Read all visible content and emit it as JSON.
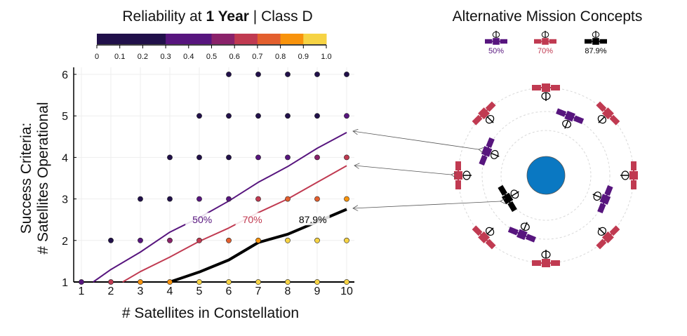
{
  "chart_data": {
    "type": "scatter",
    "title_prefix": "Reliability at ",
    "title_bold": "1 Year",
    "title_suffix": " | Class D",
    "xlabel": "# Satellites in Constellation",
    "ylabel_line1": "Success Criteria:",
    "ylabel_line2": "# Satellites Operational",
    "xlim": [
      1,
      10
    ],
    "ylim": [
      1,
      6
    ],
    "xticks": [
      "1",
      "2",
      "3",
      "4",
      "5",
      "6",
      "7",
      "8",
      "9",
      "10"
    ],
    "yticks": [
      "1",
      "2",
      "3",
      "4",
      "5",
      "6"
    ],
    "grid": true,
    "colorbar": {
      "bands": [
        {
          "from": 0,
          "to": 0.3,
          "color": "#21104a"
        },
        {
          "from": 0.3,
          "to": 0.5,
          "color": "#57157e"
        },
        {
          "from": 0.5,
          "to": 0.6,
          "color": "#8a226a"
        },
        {
          "from": 0.6,
          "to": 0.7,
          "color": "#c03a51"
        },
        {
          "from": 0.7,
          "to": 0.8,
          "color": "#e35f2e"
        },
        {
          "from": 0.8,
          "to": 0.9,
          "color": "#f8930c"
        },
        {
          "from": 0.9,
          "to": 1.0,
          "color": "#f6d344"
        }
      ],
      "ticks": [
        "0",
        "0.1",
        "0.2",
        "0.3",
        "0.4",
        "0.5",
        "0.6",
        "0.7",
        "0.8",
        "0.9",
        "1.0"
      ]
    },
    "points": [
      {
        "x": 1,
        "y": 1,
        "r": 0.4
      },
      {
        "x": 2,
        "y": 1,
        "r": 0.65
      },
      {
        "x": 3,
        "y": 1,
        "r": 0.85
      },
      {
        "x": 4,
        "y": 1,
        "r": 0.85
      },
      {
        "x": 5,
        "y": 1,
        "r": 0.95
      },
      {
        "x": 6,
        "y": 1,
        "r": 0.95
      },
      {
        "x": 7,
        "y": 1,
        "r": 0.95
      },
      {
        "x": 8,
        "y": 1,
        "r": 0.95
      },
      {
        "x": 9,
        "y": 1,
        "r": 0.95
      },
      {
        "x": 10,
        "y": 1,
        "r": 0.95
      },
      {
        "x": 2,
        "y": 2,
        "r": 0.2
      },
      {
        "x": 3,
        "y": 2,
        "r": 0.4
      },
      {
        "x": 4,
        "y": 2,
        "r": 0.55
      },
      {
        "x": 5,
        "y": 2,
        "r": 0.65
      },
      {
        "x": 6,
        "y": 2,
        "r": 0.75
      },
      {
        "x": 7,
        "y": 2,
        "r": 0.85
      },
      {
        "x": 8,
        "y": 2,
        "r": 0.95
      },
      {
        "x": 9,
        "y": 2,
        "r": 0.95
      },
      {
        "x": 10,
        "y": 2,
        "r": 0.95
      },
      {
        "x": 3,
        "y": 3,
        "r": 0.2
      },
      {
        "x": 4,
        "y": 3,
        "r": 0.2
      },
      {
        "x": 5,
        "y": 3,
        "r": 0.4
      },
      {
        "x": 6,
        "y": 3,
        "r": 0.4
      },
      {
        "x": 7,
        "y": 3,
        "r": 0.65
      },
      {
        "x": 8,
        "y": 3,
        "r": 0.75
      },
      {
        "x": 9,
        "y": 3,
        "r": 0.75
      },
      {
        "x": 10,
        "y": 3,
        "r": 0.85
      },
      {
        "x": 4,
        "y": 4,
        "r": 0.2
      },
      {
        "x": 5,
        "y": 4,
        "r": 0.2
      },
      {
        "x": 6,
        "y": 4,
        "r": 0.2
      },
      {
        "x": 7,
        "y": 4,
        "r": 0.4
      },
      {
        "x": 8,
        "y": 4,
        "r": 0.4
      },
      {
        "x": 9,
        "y": 4,
        "r": 0.55
      },
      {
        "x": 10,
        "y": 4,
        "r": 0.65
      },
      {
        "x": 5,
        "y": 5,
        "r": 0.2
      },
      {
        "x": 6,
        "y": 5,
        "r": 0.2
      },
      {
        "x": 7,
        "y": 5,
        "r": 0.2
      },
      {
        "x": 8,
        "y": 5,
        "r": 0.2
      },
      {
        "x": 9,
        "y": 5,
        "r": 0.2
      },
      {
        "x": 10,
        "y": 5,
        "r": 0.4
      },
      {
        "x": 6,
        "y": 6,
        "r": 0.2
      },
      {
        "x": 7,
        "y": 6,
        "r": 0.2
      },
      {
        "x": 8,
        "y": 6,
        "r": 0.2
      },
      {
        "x": 9,
        "y": 6,
        "r": 0.2
      },
      {
        "x": 10,
        "y": 6,
        "r": 0.2
      }
    ],
    "series": [
      {
        "name": "50%",
        "color": "#57157e",
        "width": 2,
        "label_at": [
          5.1,
          2.45
        ],
        "x": [
          1.4,
          2,
          3,
          4,
          5,
          6,
          7,
          8,
          9,
          10
        ],
        "y": [
          1,
          1.3,
          1.72,
          2.2,
          2.55,
          2.95,
          3.4,
          3.78,
          4.22,
          4.6
        ]
      },
      {
        "name": "70%",
        "color": "#c03a51",
        "width": 2,
        "label_at": [
          6.8,
          2.45
        ],
        "x": [
          2.4,
          3,
          4,
          5,
          6,
          7,
          8,
          9,
          10
        ],
        "y": [
          1,
          1.25,
          1.6,
          1.98,
          2.3,
          2.67,
          3.0,
          3.4,
          3.8
        ]
      },
      {
        "name": "87.9%",
        "color": "#000000",
        "width": 4,
        "label_at": [
          8.85,
          2.45
        ],
        "x": [
          4,
          5,
          6,
          7,
          8,
          9,
          10
        ],
        "y": [
          1,
          1.24,
          1.53,
          1.95,
          2.15,
          2.45,
          2.75
        ]
      }
    ]
  },
  "diagram": {
    "title": "Alternative Mission Concepts",
    "legend": [
      {
        "label": "50%",
        "color": "#57157e"
      },
      {
        "label": "70%",
        "color": "#c03a51"
      },
      {
        "label": "87.9%",
        "color": "#000000"
      }
    ],
    "earth_color": "#0a78c2",
    "orbits": [
      {
        "concept": "87.9%",
        "color": "#000000",
        "satellite_angles": [
          211
        ]
      },
      {
        "concept": "50%",
        "color": "#57157e",
        "satellite_angles": [
          68,
          158,
          248,
          338
        ]
      },
      {
        "concept": "70%",
        "color": "#c03a51",
        "satellite_angles": [
          0,
          45,
          90,
          135,
          180,
          225,
          270,
          315
        ]
      }
    ]
  }
}
